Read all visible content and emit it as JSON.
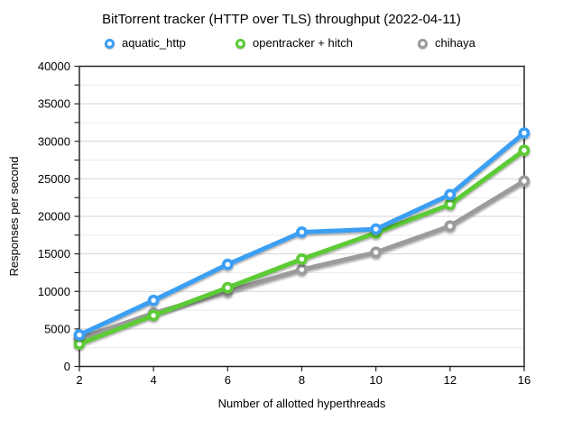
{
  "title": "BitTorrent tracker (HTTP over TLS) throughput (2022-04-11)",
  "chart_data": {
    "type": "line",
    "title": "BitTorrent tracker (HTTP over TLS) throughput (2022-04-11)",
    "x": [
      2,
      4,
      6,
      8,
      10,
      12,
      16
    ],
    "x_axis_type": "categorical",
    "xlabel": "Number of allotted hyperthreads",
    "ylabel": "Responses per second",
    "ylim": [
      0,
      40000
    ],
    "y_tick_step": 5000,
    "y_minor_step": 2500,
    "y_ticks": [
      0,
      5000,
      10000,
      15000,
      20000,
      25000,
      30000,
      35000,
      40000
    ],
    "grid": true,
    "legend_position": "top",
    "marker_style": "donut-circle",
    "series": [
      {
        "name": "aquatic_http",
        "color": "#3B9FF3",
        "values": [
          4200,
          8800,
          13600,
          17900,
          18300,
          22900,
          31100
        ]
      },
      {
        "name": "opentracker + hitch",
        "color": "#5CCB35",
        "values": [
          3000,
          6800,
          10500,
          14300,
          17800,
          21600,
          28800
        ]
      },
      {
        "name": "chihaya",
        "color": "#9B9B9B",
        "values": [
          3700,
          7100,
          10000,
          12900,
          15200,
          18700,
          24700
        ]
      }
    ]
  },
  "colors": {
    "frame": "#262626",
    "major_grid": "#d4d4d4",
    "minor_grid": "#eaeaea",
    "text": "#000000"
  }
}
